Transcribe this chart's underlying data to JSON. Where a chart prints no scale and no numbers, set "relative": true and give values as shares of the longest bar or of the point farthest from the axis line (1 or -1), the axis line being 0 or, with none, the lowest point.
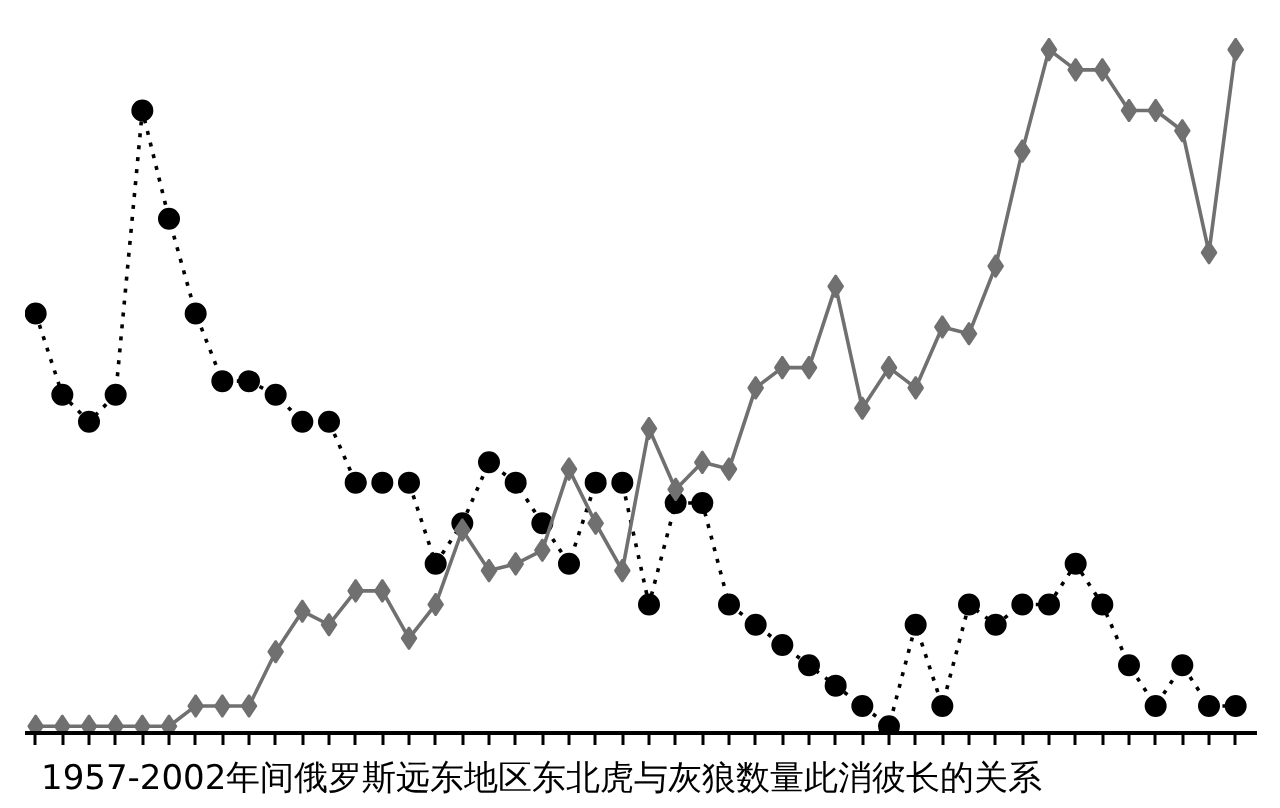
{
  "chart_data": {
    "type": "line",
    "title": "1957-2002年间俄罗斯远东地区东北虎与灰狼数量此消彼长的关系",
    "relative": true,
    "grid": false,
    "categories": [
      null,
      null,
      null,
      null,
      null,
      null,
      null,
      null,
      null,
      null,
      null,
      null,
      null,
      null,
      null,
      null,
      null,
      null,
      null,
      null,
      null,
      null,
      null,
      null,
      null,
      null,
      null,
      null,
      null,
      null,
      null,
      null,
      null,
      null,
      null,
      null,
      null,
      null,
      null,
      null,
      null,
      null,
      null,
      null,
      null,
      null
    ],
    "series": [
      {
        "color": "#000000",
        "marker": "circle",
        "line_style": "dotted",
        "values": [
          0.61,
          0.49,
          0.45,
          0.49,
          0.91,
          0.75,
          0.61,
          0.51,
          0.51,
          0.49,
          0.45,
          0.45,
          0.36,
          0.36,
          0.36,
          0.24,
          0.3,
          0.39,
          0.36,
          0.3,
          0.24,
          0.36,
          0.36,
          0.18,
          0.33,
          0.33,
          0.18,
          0.15,
          0.12,
          0.09,
          0.06,
          0.03,
          0,
          0.15,
          0.03,
          0.18,
          0.15,
          0.18,
          0.18,
          0.24,
          0.18,
          0.09,
          0.03,
          0.09,
          0.03,
          0.03
        ]
      },
      {
        "color": "#707070",
        "marker": "diamond",
        "line_style": "solid",
        "values": [
          0,
          0,
          0,
          0,
          0,
          0,
          0.03,
          0.03,
          0.03,
          0.11,
          0.17,
          0.15,
          0.2,
          0.2,
          0.13,
          0.18,
          0.29,
          0.23,
          0.24,
          0.26,
          0.38,
          0.3,
          0.23,
          0.44,
          0.35,
          0.39,
          0.38,
          0.5,
          0.53,
          0.53,
          0.65,
          0.47,
          0.53,
          0.5,
          0.59,
          0.58,
          0.68,
          0.85,
          1,
          0.97,
          0.97,
          0.91,
          0.91,
          0.88,
          0.7,
          1
        ]
      }
    ]
  }
}
